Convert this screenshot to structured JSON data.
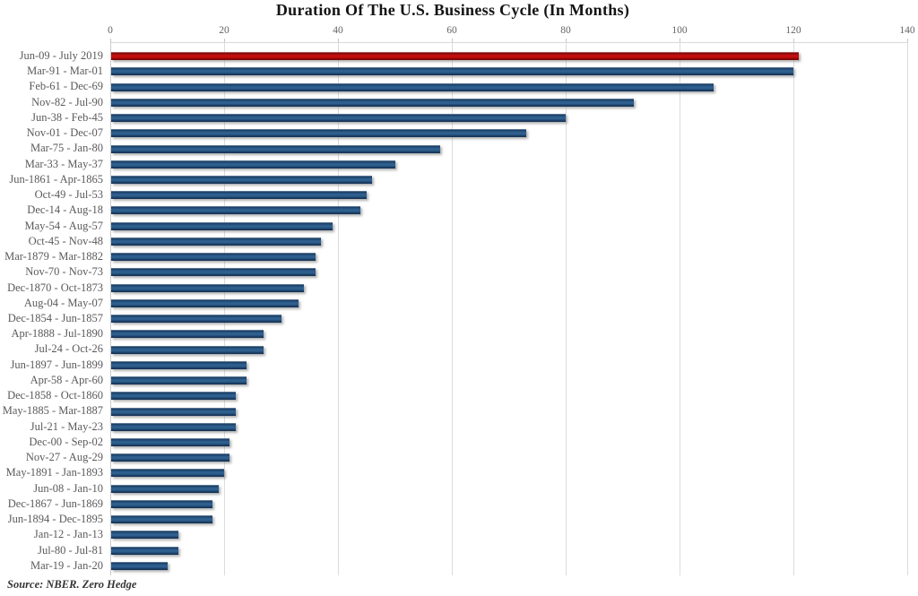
{
  "title": "Duration Of The U.S. Business Cycle (In Months)",
  "source": "Source: NBER. Zero Hedge",
  "chart_data": {
    "type": "bar",
    "orientation": "horizontal",
    "title": "Duration Of The U.S. Business Cycle (In Months)",
    "xlabel": "",
    "ylabel": "",
    "xlim": [
      0,
      140
    ],
    "x_ticks": [
      0,
      20,
      40,
      60,
      80,
      100,
      120,
      140
    ],
    "grid": "vertical",
    "axis_position": "top",
    "bar_color": "#1F4E79",
    "highlight_color": "#C00000",
    "highlight_index": 0,
    "source": "Source: NBER. Zero Hedge",
    "categories": [
      "Jun-09 - July 2019",
      "Mar-91 - Mar-01",
      "Feb-61 - Dec-69",
      "Nov-82 - Jul-90",
      "Jun-38 - Feb-45",
      "Nov-01 - Dec-07",
      "Mar-75 - Jan-80",
      "Mar-33 - May-37",
      "Jun-1861 - Apr-1865",
      "Oct-49 - Jul-53",
      "Dec-14 - Aug-18",
      "May-54 - Aug-57",
      "Oct-45 - Nov-48",
      "Mar-1879 - Mar-1882",
      "Nov-70 - Nov-73",
      "Dec-1870 - Oct-1873",
      "Aug-04 - May-07",
      "Dec-1854 - Jun-1857",
      "Apr-1888 - Jul-1890",
      "Jul-24 - Oct-26",
      "Jun-1897 - Jun-1899",
      "Apr-58 - Apr-60",
      "Dec-1858 - Oct-1860",
      "May-1885 - Mar-1887",
      "Jul-21 - May-23",
      "Dec-00 - Sep-02",
      "Nov-27 - Aug-29",
      "May-1891 - Jan-1893",
      "Jun-08 - Jan-10",
      "Dec-1867 - Jun-1869",
      "Jun-1894 - Dec-1895",
      "Jan-12 - Jan-13",
      "Jul-80 - Jul-81",
      "Mar-19 - Jan-20"
    ],
    "values": [
      121,
      120,
      106,
      92,
      80,
      73,
      58,
      50,
      46,
      45,
      44,
      39,
      37,
      36,
      36,
      34,
      33,
      30,
      27,
      27,
      24,
      24,
      22,
      22,
      22,
      21,
      21,
      20,
      19,
      18,
      18,
      12,
      12,
      10
    ]
  }
}
